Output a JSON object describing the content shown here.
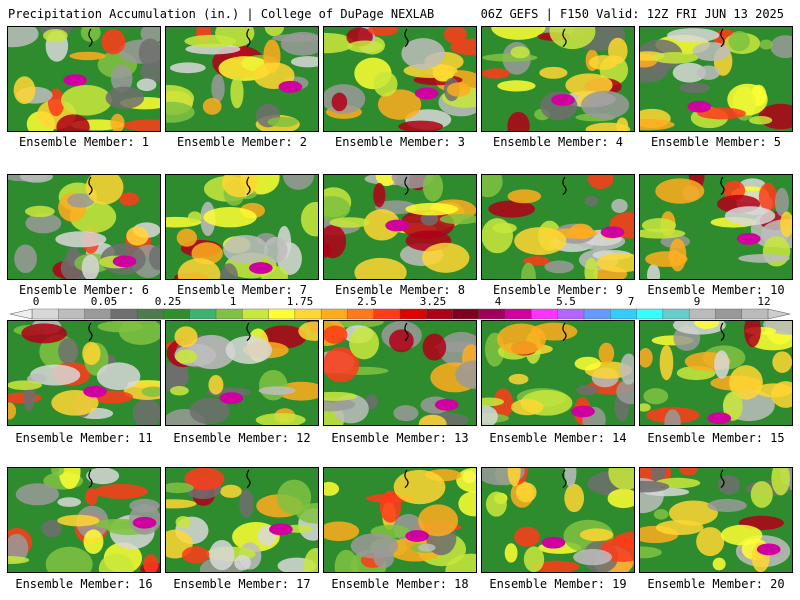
{
  "header": {
    "title_left": "Precipitation Accumulation (in.) | College of DuPage NEXLAB",
    "title_right": "06Z GEFS | F150 Valid: 12Z FRI JUN 13 2025"
  },
  "colorbar": {
    "tick_labels": [
      "0",
      "0.05",
      "0.25",
      "1",
      "1.75",
      "2.5",
      "3.25",
      "4",
      "5.5",
      "7",
      "9",
      "12"
    ],
    "colors": [
      "#d8d8d8",
      "#bdbdbd",
      "#9a9a9a",
      "#6f6f6f",
      "#4e7a4e",
      "#2f8f2f",
      "#3cb371",
      "#7fc241",
      "#c8e83c",
      "#ffff33",
      "#ffd633",
      "#ffad1f",
      "#ff7a1a",
      "#ff3b1a",
      "#e00000",
      "#b00018",
      "#800020",
      "#a0005a",
      "#d000a0",
      "#ff33ff",
      "#b266ff",
      "#6699ff",
      "#33ccff",
      "#33ffff",
      "#66cccc",
      "#bbbbbb",
      "#999999",
      "#bbbbbb"
    ]
  },
  "panels": [
    {
      "label": "Ensemble Member: 1"
    },
    {
      "label": "Ensemble Member: 2"
    },
    {
      "label": "Ensemble Member: 3"
    },
    {
      "label": "Ensemble Member: 4"
    },
    {
      "label": "Ensemble Member: 5"
    },
    {
      "label": "Ensemble Member: 6"
    },
    {
      "label": "Ensemble Member: 7"
    },
    {
      "label": "Ensemble Member: 8"
    },
    {
      "label": "Ensemble Member: 9"
    },
    {
      "label": "Ensemble Member: 10"
    },
    {
      "label": "Ensemble Member: 11"
    },
    {
      "label": "Ensemble Member: 12"
    },
    {
      "label": "Ensemble Member: 13"
    },
    {
      "label": "Ensemble Member: 14"
    },
    {
      "label": "Ensemble Member: 15"
    },
    {
      "label": "Ensemble Member: 16"
    },
    {
      "label": "Ensemble Member: 17"
    },
    {
      "label": "Ensemble Member: 18"
    },
    {
      "label": "Ensemble Member: 19"
    },
    {
      "label": "Ensemble Member: 20"
    }
  ]
}
